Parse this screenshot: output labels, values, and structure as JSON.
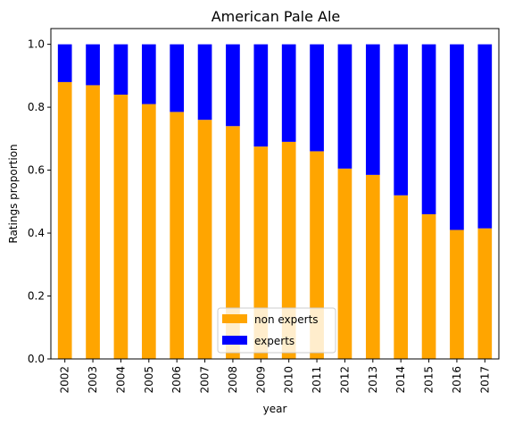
{
  "chart_data": {
    "type": "bar",
    "stacked": true,
    "title": "American Pale Ale",
    "xlabel": "year",
    "ylabel": "Ratings proportion",
    "ylim": [
      0,
      1.05
    ],
    "yticks": [
      "0.0",
      "0.2",
      "0.4",
      "0.6",
      "0.8",
      "1.0"
    ],
    "categories": [
      "2002",
      "2003",
      "2004",
      "2005",
      "2006",
      "2007",
      "2008",
      "2009",
      "2010",
      "2011",
      "2012",
      "2013",
      "2014",
      "2015",
      "2016",
      "2017"
    ],
    "series": [
      {
        "name": "non experts",
        "color": "#ffa500",
        "values": [
          0.88,
          0.87,
          0.84,
          0.81,
          0.785,
          0.76,
          0.74,
          0.675,
          0.69,
          0.66,
          0.605,
          0.585,
          0.52,
          0.46,
          0.41,
          0.415
        ]
      },
      {
        "name": "experts",
        "color": "#0000ff",
        "values": [
          0.12,
          0.13,
          0.16,
          0.19,
          0.215,
          0.24,
          0.26,
          0.325,
          0.31,
          0.34,
          0.395,
          0.415,
          0.48,
          0.54,
          0.59,
          0.585
        ]
      }
    ],
    "legend": "lower-center",
    "grid": false
  }
}
